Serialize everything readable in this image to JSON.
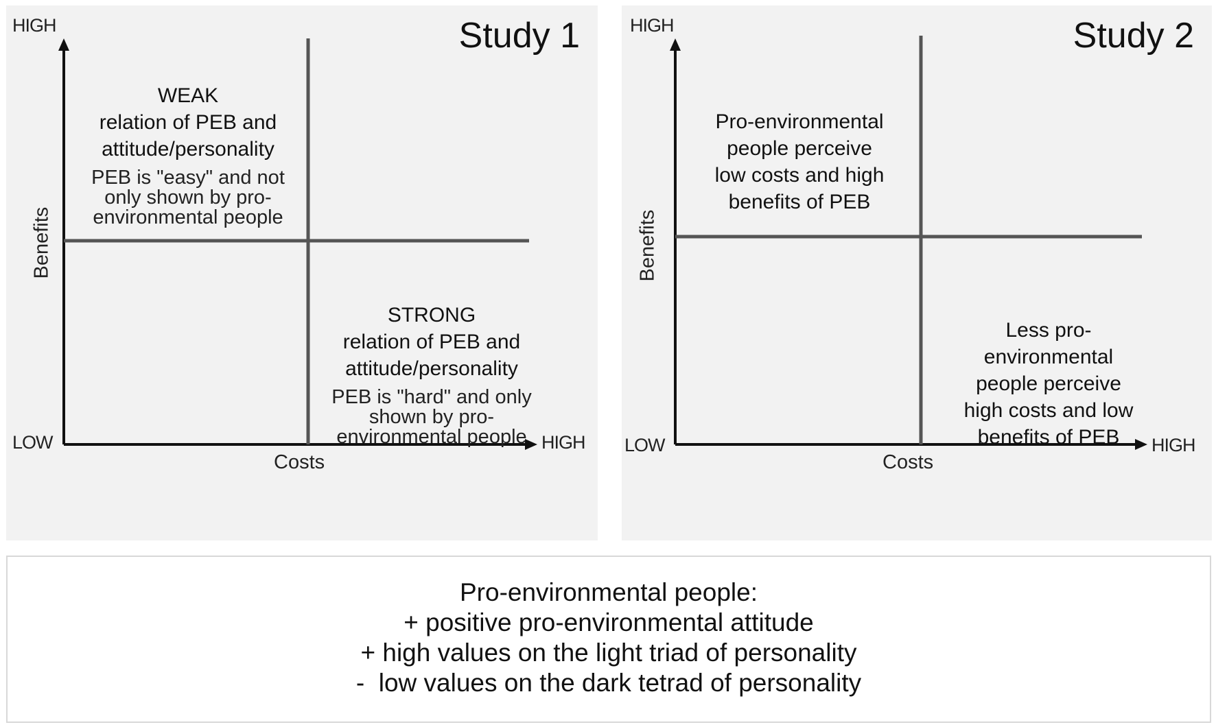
{
  "study1": {
    "title": "Study 1",
    "y_high": "HIGH",
    "x_low": "LOW",
    "x_high": "HIGH",
    "x_label": "Costs",
    "y_label": "Benefits",
    "top_left": {
      "lines": [
        "WEAK",
        "relation of PEB and",
        "attitude/personality"
      ],
      "sub_lines": [
        "PEB is \"easy\" and not",
        "only shown by pro-",
        "environmental people"
      ]
    },
    "bottom_right": {
      "lines": [
        "STRONG",
        "relation of PEB and",
        "attitude/personality"
      ],
      "sub_lines": [
        "PEB is \"hard\" and only",
        "shown by pro-",
        "environmental people"
      ]
    }
  },
  "study2": {
    "title": "Study 2",
    "y_high": "HIGH",
    "x_low": "LOW",
    "x_high": "HIGH",
    "x_label": "Costs",
    "y_label": "Benefits",
    "top_left": {
      "lines": [
        "Pro-environmental",
        "people perceive",
        "low costs and high",
        "benefits of PEB"
      ]
    },
    "bottom_right": {
      "lines": [
        "Less pro-",
        "environmental",
        "people perceive",
        "high costs and low",
        "benefits of PEB"
      ]
    }
  },
  "summary": {
    "heading": "Pro-environmental people:",
    "items": [
      "+ positive pro-environmental attitude",
      "+ high values on the light triad of personality",
      "-  low values on the dark tetrad of personality"
    ]
  }
}
